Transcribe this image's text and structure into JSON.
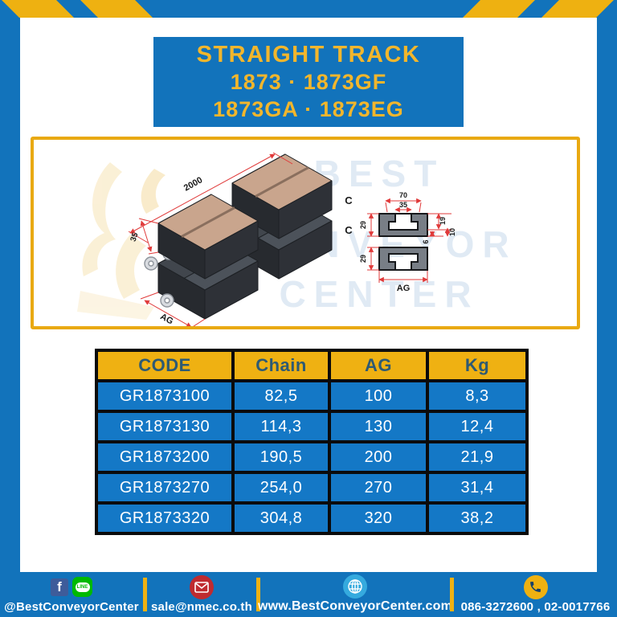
{
  "title": {
    "lines": [
      "STRAIGHT TRACK",
      "1873 · 1873GF",
      "1873GA · 1873EG"
    ]
  },
  "drawing": {
    "iso": {
      "length": "2000",
      "height": "35",
      "width": "AG",
      "chain_upper": "C",
      "chain_lower": "C"
    },
    "section": {
      "cavity_width": "70",
      "slot_width": "35",
      "upper_profile_height": "29",
      "lower_profile_height": "29",
      "depth_a": "19",
      "depth_b": "10",
      "lip": "6",
      "overall_width": "AG"
    },
    "watermark_lines": [
      "BEST",
      "CONVEYOR",
      "CENTER"
    ]
  },
  "table": {
    "headers": [
      "CODE",
      "Chain",
      "AG",
      "Kg"
    ],
    "rows": [
      [
        "GR1873100",
        "82,5",
        "100",
        "8,3"
      ],
      [
        "GR1873130",
        "114,3",
        "130",
        "12,4"
      ],
      [
        "GR1873200",
        "190,5",
        "200",
        "21,9"
      ],
      [
        "GR1873270",
        "254,0",
        "270",
        "31,4"
      ],
      [
        "GR1873320",
        "304,8",
        "320",
        "38,2"
      ]
    ]
  },
  "footer": {
    "social_label": "@BestConveyorCenter",
    "line_text": "LINE",
    "facebook_letter": "f",
    "email_label": "sale@nmec.co.th",
    "website_label": "www.BestConveyorCenter.com",
    "phone_label": "086-3272600 , 02-0017766"
  },
  "colors": {
    "brand_blue": "#1273bb",
    "accent_yellow": "#eeb111",
    "table_cell_blue": "#1478c6",
    "table_header_text": "#2e5a73",
    "dimension_red": "#e03a3a",
    "title_text_yellow": "#f2b62c"
  }
}
